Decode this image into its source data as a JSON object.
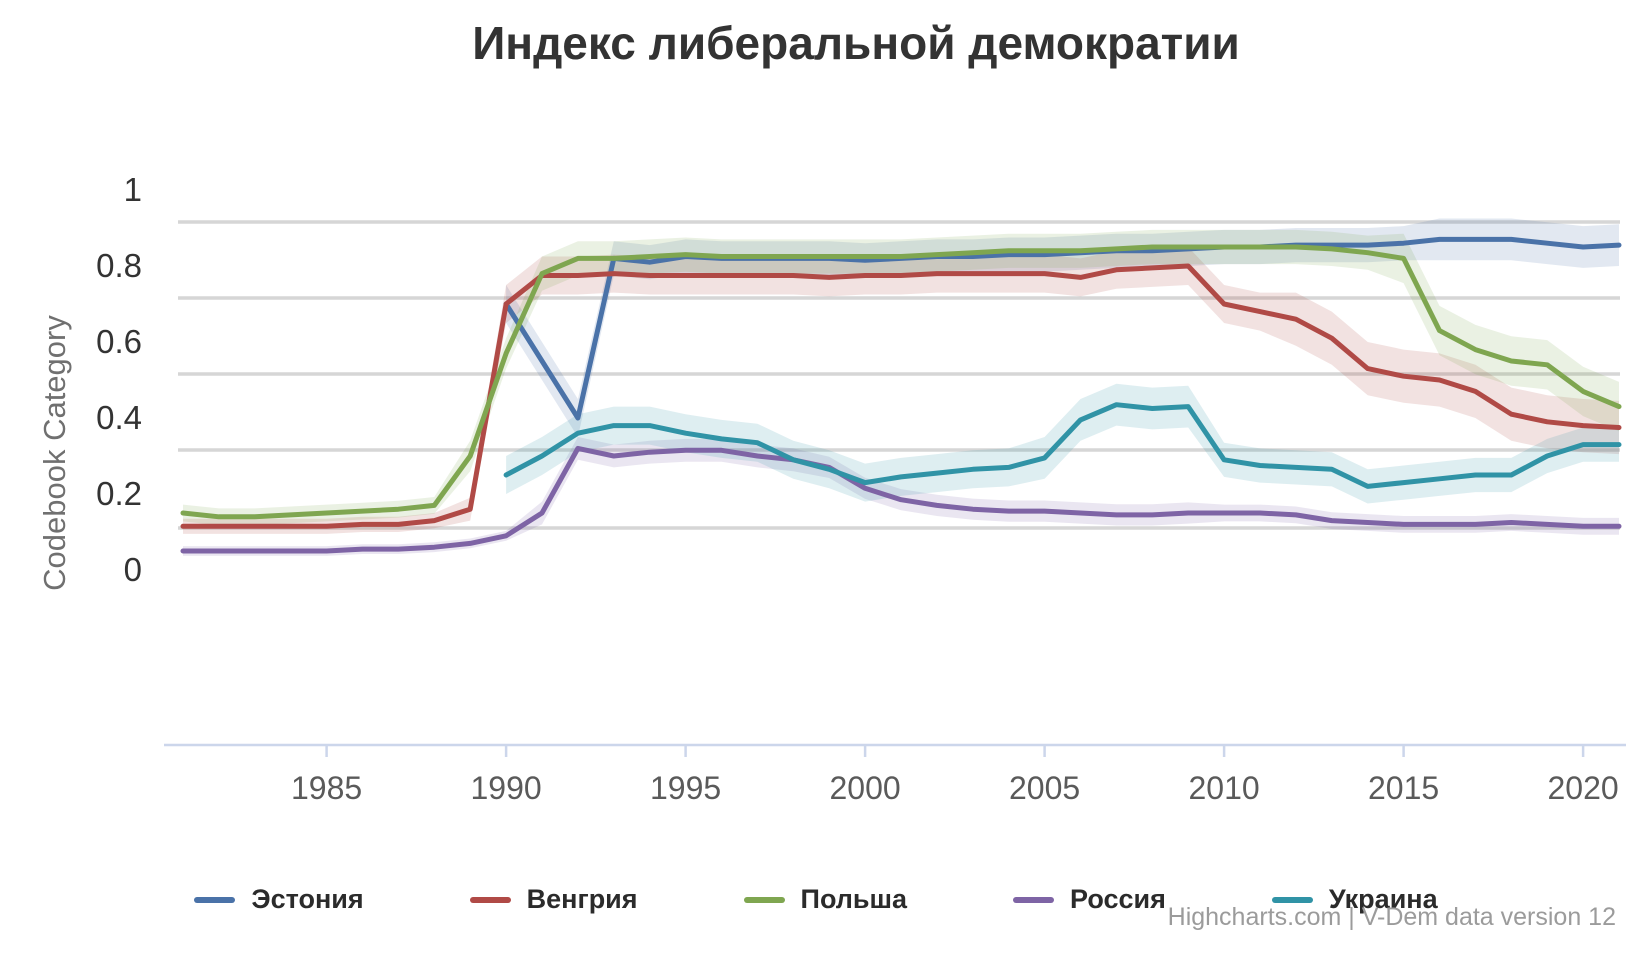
{
  "page": {
    "background": "#ffffff"
  },
  "chart_data": {
    "type": "line",
    "title": "Индекс либеральной демократии",
    "ylabel": "Codebook Category",
    "xlabel": "",
    "credit": "Highcharts.com | V-Dem data version 12",
    "x_range": [
      1981,
      2021
    ],
    "xticks": [
      1985,
      1990,
      1995,
      2000,
      2005,
      2010,
      2015,
      2020
    ],
    "yticks": [
      1,
      0.8,
      0.6,
      0.4,
      0.2,
      0
    ],
    "ylim": [
      0,
      1
    ],
    "grid": "horizontal",
    "legend_position": "bottom",
    "uncertainty_bands": true,
    "series": [
      {
        "key": "estonia",
        "name": "Эстония",
        "color": "#4a72a8",
        "start_year": 1990,
        "values": [
          0.7,
          0.55,
          0.4,
          0.82,
          0.81,
          0.825,
          0.82,
          0.82,
          0.82,
          0.82,
          0.815,
          0.82,
          0.825,
          0.825,
          0.83,
          0.83,
          0.835,
          0.84,
          0.84,
          0.845,
          0.85,
          0.85,
          0.855,
          0.855,
          0.855,
          0.86,
          0.87,
          0.87,
          0.87,
          0.86,
          0.85,
          0.855
        ],
        "ci": [
          [
            1990,
            0.05
          ],
          [
            1993,
            0.045
          ],
          [
            2016,
            0.055
          ]
        ]
      },
      {
        "key": "hungary",
        "name": "Венгрия",
        "color": "#b04a46",
        "start_year": 1981,
        "values": [
          0.115,
          0.115,
          0.115,
          0.115,
          0.115,
          0.12,
          0.12,
          0.13,
          0.16,
          0.7,
          0.775,
          0.775,
          0.78,
          0.775,
          0.775,
          0.775,
          0.775,
          0.775,
          0.77,
          0.775,
          0.775,
          0.78,
          0.78,
          0.78,
          0.78,
          0.77,
          0.79,
          0.795,
          0.8,
          0.7,
          0.68,
          0.66,
          0.61,
          0.53,
          0.51,
          0.5,
          0.47,
          0.41,
          0.39,
          0.38,
          0.375
        ],
        "ci": [
          [
            1981,
            0.02
          ],
          [
            1989,
            0.03
          ],
          [
            1990,
            0.05
          ],
          [
            2012,
            0.07
          ]
        ]
      },
      {
        "key": "poland",
        "name": "Польша",
        "color": "#7fa650",
        "start_year": 1981,
        "values": [
          0.15,
          0.14,
          0.14,
          0.145,
          0.15,
          0.155,
          0.16,
          0.17,
          0.3,
          0.57,
          0.78,
          0.82,
          0.82,
          0.825,
          0.83,
          0.825,
          0.825,
          0.825,
          0.825,
          0.825,
          0.825,
          0.83,
          0.835,
          0.84,
          0.84,
          0.84,
          0.845,
          0.85,
          0.85,
          0.85,
          0.85,
          0.85,
          0.845,
          0.835,
          0.82,
          0.63,
          0.58,
          0.55,
          0.54,
          0.47,
          0.43
        ],
        "ci": [
          [
            1981,
            0.022
          ],
          [
            1989,
            0.04
          ],
          [
            1991,
            0.045
          ],
          [
            2015,
            0.065
          ]
        ]
      },
      {
        "key": "russia",
        "name": "Россия",
        "color": "#7e64a5",
        "start_year": 1981,
        "values": [
          0.05,
          0.05,
          0.05,
          0.05,
          0.05,
          0.055,
          0.055,
          0.06,
          0.07,
          0.09,
          0.15,
          0.32,
          0.3,
          0.31,
          0.315,
          0.315,
          0.3,
          0.29,
          0.27,
          0.215,
          0.185,
          0.17,
          0.16,
          0.155,
          0.155,
          0.15,
          0.145,
          0.145,
          0.15,
          0.15,
          0.15,
          0.145,
          0.13,
          0.125,
          0.12,
          0.12,
          0.12,
          0.125,
          0.12,
          0.115,
          0.115
        ],
        "ci": [
          [
            1981,
            0.013
          ],
          [
            1991,
            0.03
          ],
          [
            1999,
            0.028
          ],
          [
            2010,
            0.022
          ]
        ]
      },
      {
        "key": "ukraine",
        "name": "Украина",
        "color": "#3093a6",
        "start_year": 1990,
        "values": [
          0.25,
          0.3,
          0.36,
          0.38,
          0.38,
          0.36,
          0.345,
          0.335,
          0.29,
          0.265,
          0.23,
          0.245,
          0.255,
          0.265,
          0.27,
          0.295,
          0.395,
          0.435,
          0.425,
          0.43,
          0.29,
          0.275,
          0.27,
          0.265,
          0.22,
          0.23,
          0.24,
          0.25,
          0.25,
          0.3,
          0.33,
          0.33
        ],
        "ci": [
          [
            1990,
            0.05
          ],
          [
            2005,
            0.055
          ],
          [
            2010,
            0.045
          ]
        ]
      }
    ]
  }
}
